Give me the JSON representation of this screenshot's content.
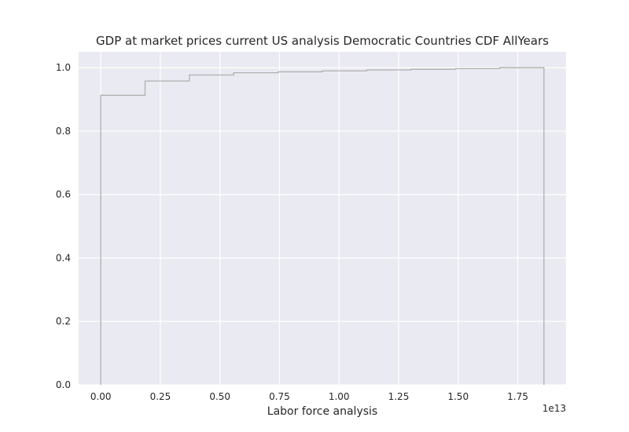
{
  "chart_data": {
    "type": "line",
    "subtype": "cumulative-step-histogram",
    "title": "GDP at market prices current US analysis Democratic Countries CDF AllYears",
    "xlabel": "Labor force analysis",
    "ylabel": "",
    "x_offset_text": "1e13",
    "x_scale": 10000000000000.0,
    "xlim": [
      -0.093,
      1.953
    ],
    "ylim": [
      0.0,
      1.05
    ],
    "x_ticks": [
      0.0,
      0.25,
      0.5,
      0.75,
      1.0,
      1.25,
      1.5,
      1.75
    ],
    "x_tick_labels": [
      "0.00",
      "0.25",
      "0.50",
      "0.75",
      "1.00",
      "1.25",
      "1.50",
      "1.75"
    ],
    "y_ticks": [
      0.0,
      0.2,
      0.4,
      0.6,
      0.8,
      1.0
    ],
    "y_tick_labels": [
      "0.0",
      "0.2",
      "0.4",
      "0.6",
      "0.8",
      "1.0"
    ],
    "grid": true,
    "line_color": "#b0b0b0",
    "background_color": "#eaeaf2",
    "bin_edges": [
      0.0,
      0.186,
      0.372,
      0.558,
      0.744,
      0.93,
      1.116,
      1.302,
      1.488,
      1.674,
      1.86
    ],
    "cdf_values": [
      0.913,
      0.958,
      0.977,
      0.984,
      0.987,
      0.99,
      0.993,
      0.995,
      0.997,
      1.0
    ]
  }
}
